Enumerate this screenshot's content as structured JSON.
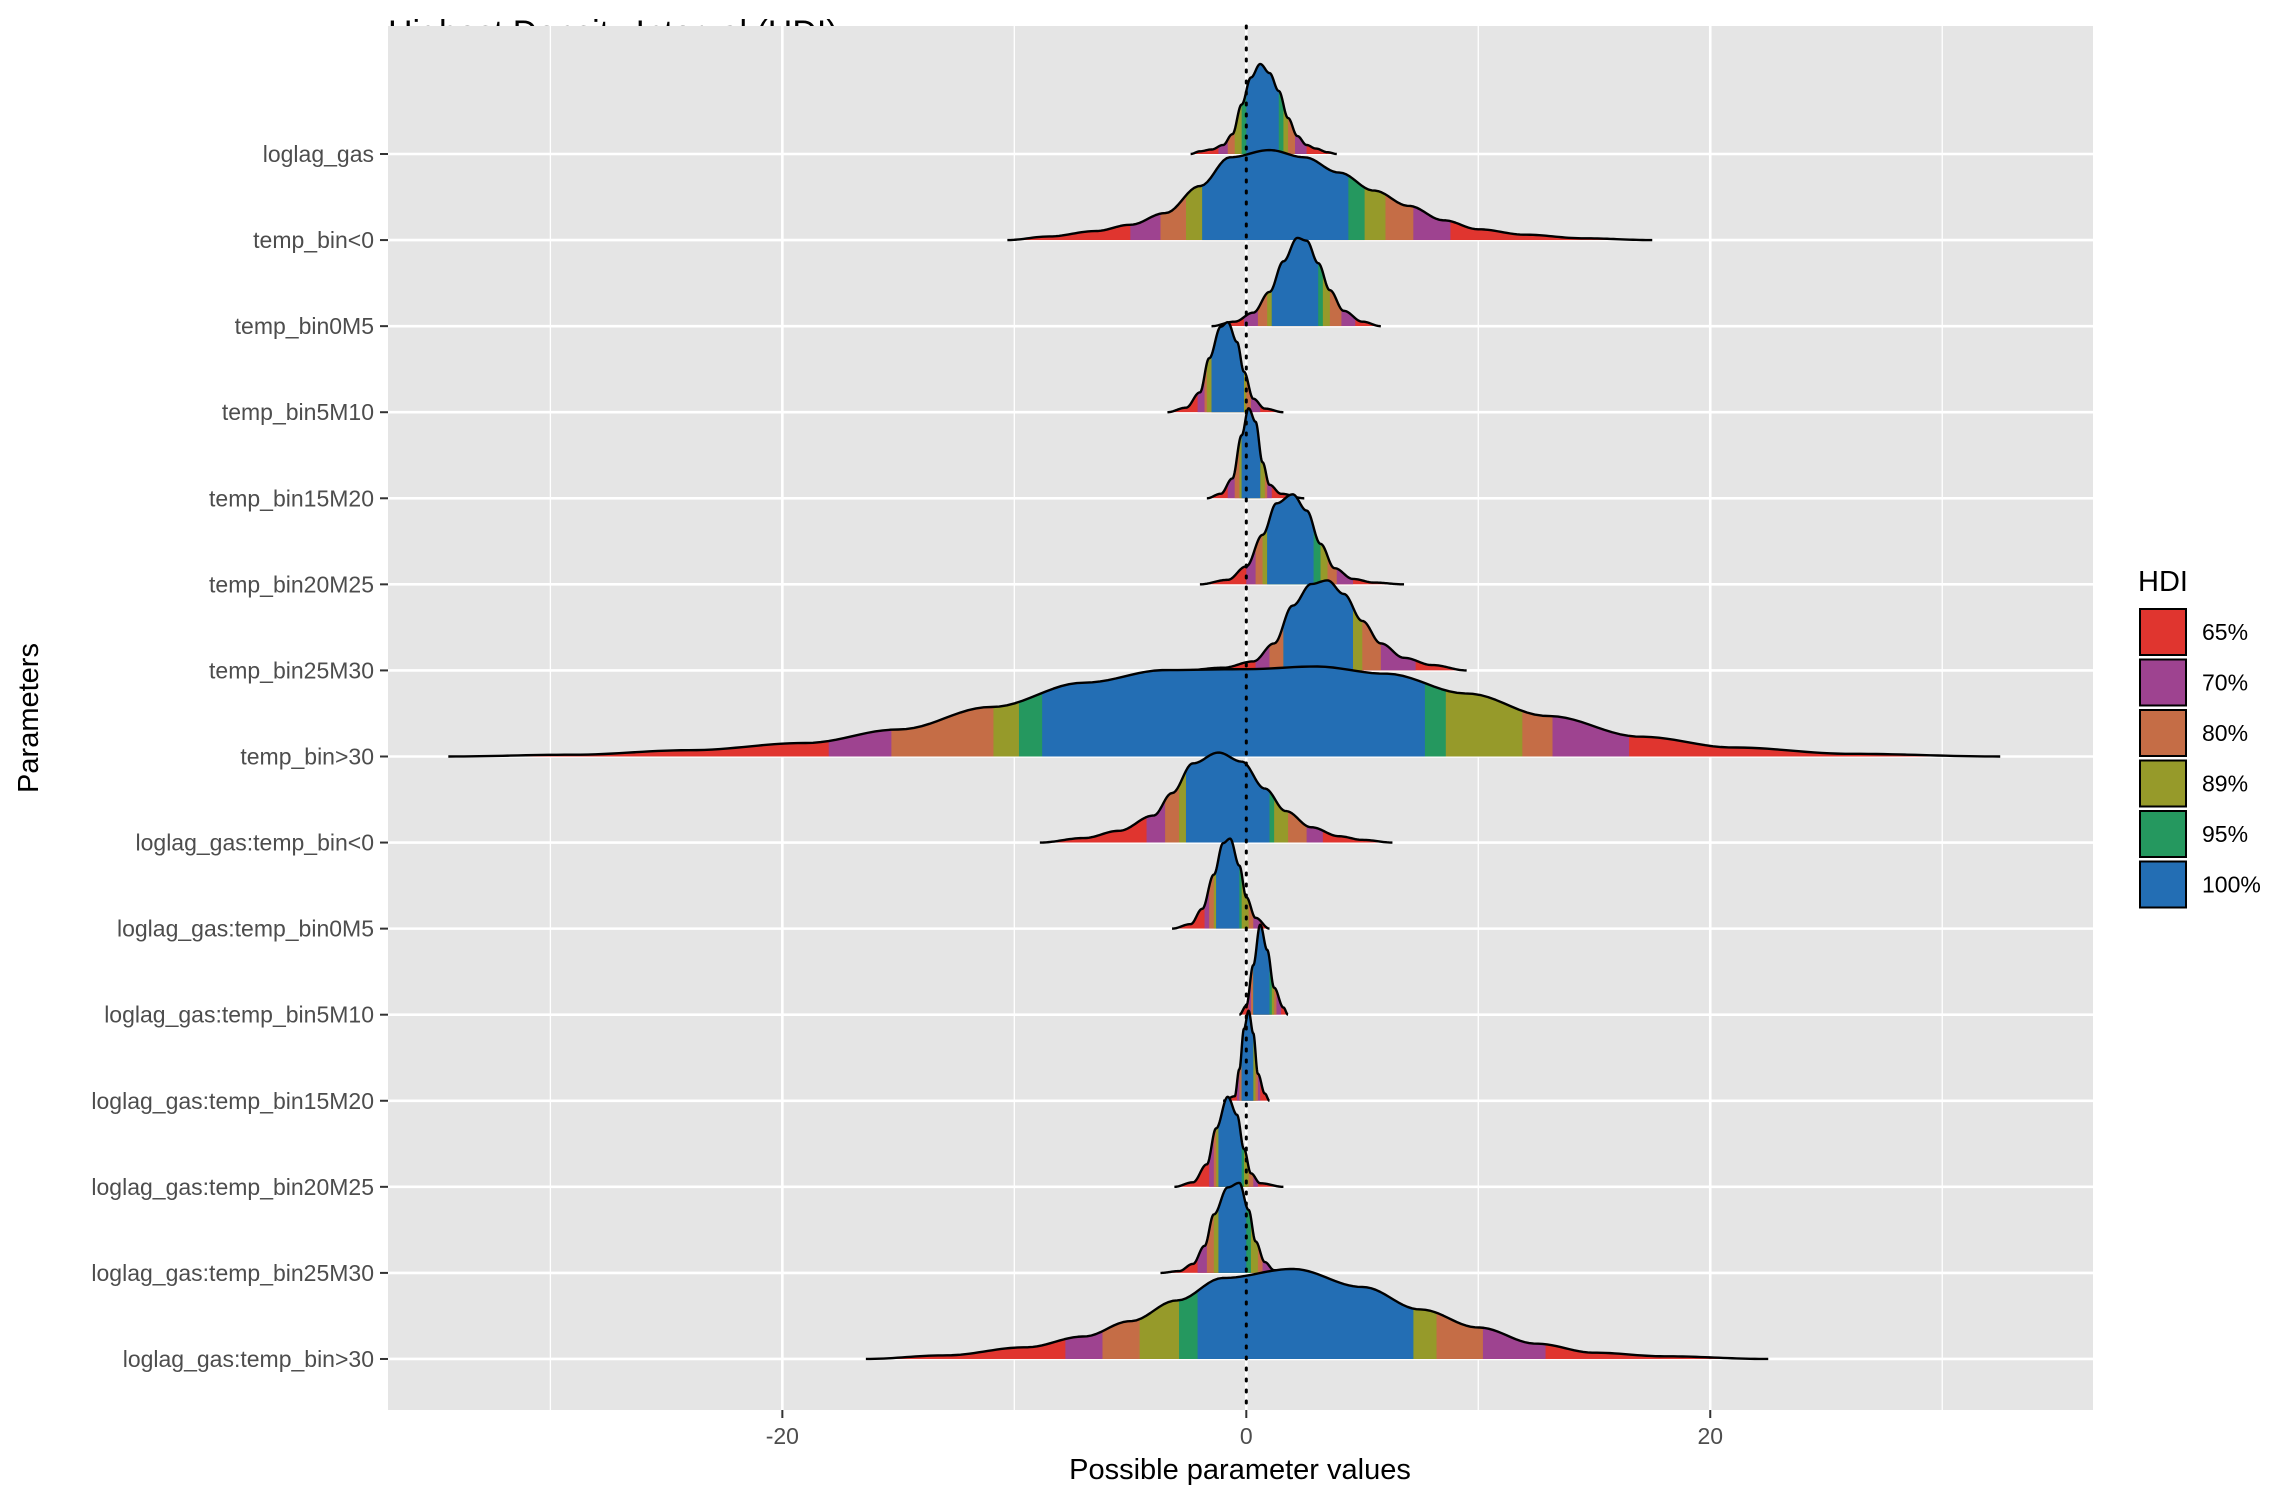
{
  "chart_data": {
    "type": "ridgeline-density",
    "title": "Highest Density Interval (HDI)",
    "xlabel": "Possible parameter values",
    "ylabel": "Parameters",
    "xlim": [
      -37,
      36.5
    ],
    "x_ticks": [
      -20,
      0,
      20
    ],
    "x_tick_labels": [
      "-20",
      "0",
      "20"
    ],
    "reference_line_x": 0,
    "grid": true,
    "legend": {
      "title": "HDI",
      "position": "right",
      "entries": [
        {
          "label": "65%",
          "color": "#E0352F"
        },
        {
          "label": "70%",
          "color": "#9E4390"
        },
        {
          "label": "80%",
          "color": "#C56D46"
        },
        {
          "label": "89%",
          "color": "#969A2A"
        },
        {
          "label": "95%",
          "color": "#25985F"
        },
        {
          "label": "100%",
          "color": "#236EB4"
        }
      ]
    },
    "series": [
      {
        "name": "loglag_gas",
        "peak_height": 1.0,
        "curve": [
          [
            -2.4,
            0.0
          ],
          [
            -2.0,
            0.03
          ],
          [
            -1.5,
            0.05
          ],
          [
            -1.0,
            0.1
          ],
          [
            -0.6,
            0.22
          ],
          [
            -0.2,
            0.55
          ],
          [
            0.2,
            0.85
          ],
          [
            0.6,
            1.0
          ],
          [
            1.0,
            0.9
          ],
          [
            1.4,
            0.7
          ],
          [
            1.8,
            0.4
          ],
          [
            2.2,
            0.2
          ],
          [
            2.6,
            0.1
          ],
          [
            3.0,
            0.06
          ],
          [
            3.5,
            0.02
          ],
          [
            3.9,
            0.0
          ]
        ],
        "intervals": [
          [
            -2.4,
            3.9
          ],
          [
            -1.2,
            2.6
          ],
          [
            -0.8,
            2.1
          ],
          [
            -0.5,
            1.8
          ],
          [
            -0.2,
            1.6
          ],
          [
            0.0,
            1.4
          ]
        ]
      },
      {
        "name": "temp_bin<0",
        "peak_height": 1.0,
        "curve": [
          [
            -10.3,
            0.0
          ],
          [
            -8.5,
            0.04
          ],
          [
            -6.5,
            0.1
          ],
          [
            -5.0,
            0.17
          ],
          [
            -3.5,
            0.3
          ],
          [
            -2.0,
            0.6
          ],
          [
            -0.7,
            0.92
          ],
          [
            1.0,
            1.0
          ],
          [
            2.5,
            0.92
          ],
          [
            4.0,
            0.75
          ],
          [
            5.5,
            0.55
          ],
          [
            7.0,
            0.38
          ],
          [
            8.5,
            0.22
          ],
          [
            10.0,
            0.12
          ],
          [
            12.0,
            0.06
          ],
          [
            14.5,
            0.02
          ],
          [
            17.5,
            0.0
          ]
        ],
        "intervals": [
          [
            -10.3,
            17.5
          ],
          [
            -5.0,
            8.8
          ],
          [
            -3.7,
            7.2
          ],
          [
            -2.6,
            6.0
          ],
          [
            -1.9,
            5.1
          ],
          [
            -1.9,
            4.4
          ]
        ]
      },
      {
        "name": "temp_bin0M5",
        "peak_height": 1.0,
        "curve": [
          [
            -1.5,
            0.0
          ],
          [
            -0.5,
            0.05
          ],
          [
            0.3,
            0.15
          ],
          [
            1.0,
            0.38
          ],
          [
            1.6,
            0.72
          ],
          [
            2.2,
            0.98
          ],
          [
            2.6,
            0.95
          ],
          [
            3.1,
            0.7
          ],
          [
            3.6,
            0.4
          ],
          [
            4.2,
            0.17
          ],
          [
            5.0,
            0.05
          ],
          [
            5.8,
            0.0
          ]
        ],
        "intervals": [
          [
            -1.5,
            5.8
          ],
          [
            -0.1,
            4.7
          ],
          [
            0.5,
            4.1
          ],
          [
            0.9,
            3.6
          ],
          [
            1.1,
            3.3
          ],
          [
            1.1,
            3.1
          ]
        ]
      },
      {
        "name": "temp_bin5M10",
        "peak_height": 1.0,
        "curve": [
          [
            -3.4,
            0.0
          ],
          [
            -2.6,
            0.05
          ],
          [
            -2.0,
            0.22
          ],
          [
            -1.6,
            0.6
          ],
          [
            -1.1,
            0.95
          ],
          [
            -0.8,
            1.0
          ],
          [
            -0.4,
            0.78
          ],
          [
            -0.1,
            0.45
          ],
          [
            0.3,
            0.15
          ],
          [
            0.8,
            0.04
          ],
          [
            1.6,
            0.0
          ]
        ],
        "intervals": [
          [
            -3.4,
            1.6
          ],
          [
            -2.1,
            0.6
          ],
          [
            -1.8,
            0.2
          ],
          [
            -1.7,
            0.0
          ],
          [
            -1.5,
            -0.1
          ],
          [
            -1.5,
            -0.1
          ]
        ]
      },
      {
        "name": "temp_bin15M20",
        "peak_height": 1.0,
        "curve": [
          [
            -1.7,
            0.0
          ],
          [
            -1.1,
            0.05
          ],
          [
            -0.6,
            0.22
          ],
          [
            -0.2,
            0.7
          ],
          [
            0.1,
            1.0
          ],
          [
            0.4,
            0.85
          ],
          [
            0.7,
            0.4
          ],
          [
            1.0,
            0.15
          ],
          [
            1.5,
            0.05
          ],
          [
            2.5,
            0.0
          ]
        ],
        "intervals": [
          [
            -1.7,
            2.5
          ],
          [
            -0.8,
            1.1
          ],
          [
            -0.5,
            0.9
          ],
          [
            -0.3,
            0.8
          ],
          [
            -0.2,
            0.6
          ],
          [
            -0.2,
            0.6
          ]
        ]
      },
      {
        "name": "temp_bin20M25",
        "peak_height": 1.0,
        "curve": [
          [
            -2.0,
            0.0
          ],
          [
            -0.8,
            0.05
          ],
          [
            0.0,
            0.2
          ],
          [
            0.7,
            0.55
          ],
          [
            1.3,
            0.9
          ],
          [
            2.0,
            1.0
          ],
          [
            2.6,
            0.82
          ],
          [
            3.2,
            0.45
          ],
          [
            3.8,
            0.18
          ],
          [
            4.6,
            0.06
          ],
          [
            5.5,
            0.02
          ],
          [
            6.8,
            0.0
          ]
        ],
        "intervals": [
          [
            -2.0,
            6.8
          ],
          [
            0.0,
            4.6
          ],
          [
            0.4,
            3.9
          ],
          [
            0.7,
            3.5
          ],
          [
            0.9,
            3.2
          ],
          [
            0.9,
            2.9
          ]
        ]
      },
      {
        "name": "temp_bin25M30",
        "peak_height": 1.0,
        "curve": [
          [
            -2.7,
            0.0
          ],
          [
            -1.0,
            0.03
          ],
          [
            0.3,
            0.1
          ],
          [
            1.2,
            0.3
          ],
          [
            2.0,
            0.72
          ],
          [
            2.8,
            0.96
          ],
          [
            3.5,
            1.0
          ],
          [
            4.2,
            0.85
          ],
          [
            5.0,
            0.55
          ],
          [
            5.8,
            0.3
          ],
          [
            6.8,
            0.14
          ],
          [
            8.0,
            0.06
          ],
          [
            9.5,
            0.0
          ]
        ],
        "intervals": [
          [
            -2.7,
            9.5
          ],
          [
            0.4,
            7.3
          ],
          [
            1.0,
            5.8
          ],
          [
            1.6,
            5.0
          ],
          [
            1.6,
            4.6
          ],
          [
            1.6,
            4.6
          ]
        ]
      },
      {
        "name": "temp_bin>30",
        "peak_height": 1.0,
        "curve": [
          [
            -34.4,
            0.0
          ],
          [
            -29.0,
            0.02
          ],
          [
            -24.0,
            0.07
          ],
          [
            -19.0,
            0.15
          ],
          [
            -15.0,
            0.3
          ],
          [
            -11.0,
            0.55
          ],
          [
            -7.0,
            0.82
          ],
          [
            -3.5,
            0.96
          ],
          [
            0.0,
            0.97
          ],
          [
            3.0,
            1.0
          ],
          [
            6.0,
            0.92
          ],
          [
            9.5,
            0.7
          ],
          [
            13.0,
            0.45
          ],
          [
            17.0,
            0.22
          ],
          [
            21.0,
            0.1
          ],
          [
            26.0,
            0.03
          ],
          [
            32.5,
            0.0
          ]
        ],
        "intervals": [
          [
            -34.4,
            32.5
          ],
          [
            -18.0,
            16.5
          ],
          [
            -15.3,
            13.2
          ],
          [
            -10.9,
            11.9
          ],
          [
            -9.8,
            8.6
          ],
          [
            -8.8,
            7.7
          ]
        ]
      },
      {
        "name": "loglag_gas:temp_bin<0",
        "peak_height": 1.0,
        "curve": [
          [
            -8.9,
            0.0
          ],
          [
            -7.0,
            0.05
          ],
          [
            -5.5,
            0.13
          ],
          [
            -4.0,
            0.3
          ],
          [
            -3.2,
            0.55
          ],
          [
            -2.3,
            0.88
          ],
          [
            -1.2,
            1.0
          ],
          [
            -0.2,
            0.9
          ],
          [
            0.8,
            0.6
          ],
          [
            1.7,
            0.35
          ],
          [
            2.8,
            0.17
          ],
          [
            4.0,
            0.07
          ],
          [
            5.0,
            0.03
          ],
          [
            6.3,
            0.0
          ]
        ],
        "intervals": [
          [
            -8.9,
            6.3
          ],
          [
            -4.3,
            3.3
          ],
          [
            -3.5,
            2.6
          ],
          [
            -2.9,
            1.8
          ],
          [
            -2.6,
            1.2
          ],
          [
            -2.6,
            1.0
          ]
        ]
      },
      {
        "name": "loglag_gas:temp_bin0M5",
        "peak_height": 1.0,
        "curve": [
          [
            -3.2,
            0.0
          ],
          [
            -2.4,
            0.05
          ],
          [
            -1.9,
            0.22
          ],
          [
            -1.4,
            0.6
          ],
          [
            -1.0,
            0.95
          ],
          [
            -0.7,
            1.0
          ],
          [
            -0.3,
            0.7
          ],
          [
            0.0,
            0.35
          ],
          [
            0.4,
            0.12
          ],
          [
            1.0,
            0.0
          ]
        ],
        "intervals": [
          [
            -3.2,
            1.0
          ],
          [
            -1.8,
            0.6
          ],
          [
            -1.6,
            0.3
          ],
          [
            -1.4,
            0.1
          ],
          [
            -1.3,
            -0.2
          ],
          [
            -1.3,
            -0.3
          ]
        ]
      },
      {
        "name": "loglag_gas:temp_bin5M10",
        "peak_height": 1.0,
        "curve": [
          [
            -0.3,
            0.0
          ],
          [
            0.0,
            0.1
          ],
          [
            0.3,
            0.55
          ],
          [
            0.6,
            1.0
          ],
          [
            0.9,
            0.72
          ],
          [
            1.2,
            0.3
          ],
          [
            1.6,
            0.08
          ],
          [
            1.8,
            0.0
          ]
        ],
        "intervals": [
          [
            -0.3,
            1.8
          ],
          [
            0.1,
            1.5
          ],
          [
            0.2,
            1.3
          ],
          [
            0.3,
            1.2
          ],
          [
            0.3,
            1.1
          ],
          [
            0.3,
            1.0
          ]
        ]
      },
      {
        "name": "loglag_gas:temp_bin15M20",
        "peak_height": 1.0,
        "curve": [
          [
            -1.0,
            0.0
          ],
          [
            -0.5,
            0.05
          ],
          [
            -0.3,
            0.35
          ],
          [
            -0.1,
            0.8
          ],
          [
            0.1,
            1.0
          ],
          [
            0.3,
            0.75
          ],
          [
            0.5,
            0.3
          ],
          [
            0.8,
            0.08
          ],
          [
            1.0,
            0.0
          ]
        ],
        "intervals": [
          [
            -1.0,
            1.0
          ],
          [
            -0.4,
            0.6
          ],
          [
            -0.3,
            0.5
          ],
          [
            -0.2,
            0.4
          ],
          [
            -0.2,
            0.3
          ],
          [
            -0.2,
            0.3
          ]
        ]
      },
      {
        "name": "loglag_gas:temp_bin20M25",
        "peak_height": 1.0,
        "curve": [
          [
            -3.1,
            0.0
          ],
          [
            -2.3,
            0.05
          ],
          [
            -1.7,
            0.25
          ],
          [
            -1.3,
            0.65
          ],
          [
            -0.8,
            1.0
          ],
          [
            -0.4,
            0.8
          ],
          [
            -0.1,
            0.42
          ],
          [
            0.2,
            0.15
          ],
          [
            0.6,
            0.04
          ],
          [
            1.6,
            0.0
          ]
        ],
        "intervals": [
          [
            -3.1,
            1.6
          ],
          [
            -1.6,
            0.5
          ],
          [
            -1.4,
            0.3
          ],
          [
            -1.3,
            0.1
          ],
          [
            -1.2,
            -0.1
          ],
          [
            -1.2,
            -0.2
          ]
        ]
      },
      {
        "name": "loglag_gas:temp_bin25M30",
        "peak_height": 1.0,
        "curve": [
          [
            -3.7,
            0.0
          ],
          [
            -2.9,
            0.02
          ],
          [
            -2.3,
            0.1
          ],
          [
            -1.8,
            0.3
          ],
          [
            -1.4,
            0.65
          ],
          [
            -0.8,
            0.95
          ],
          [
            -0.3,
            1.0
          ],
          [
            0.1,
            0.7
          ],
          [
            0.4,
            0.35
          ],
          [
            0.8,
            0.12
          ],
          [
            1.2,
            0.03
          ],
          [
            2.0,
            0.0
          ]
        ],
        "intervals": [
          [
            -3.7,
            2.0
          ],
          [
            -2.1,
            1.1
          ],
          [
            -1.7,
            0.7
          ],
          [
            -1.4,
            0.5
          ],
          [
            -1.2,
            0.2
          ],
          [
            -1.2,
            0.0
          ]
        ]
      },
      {
        "name": "loglag_gas:temp_bin>30",
        "peak_height": 1.0,
        "curve": [
          [
            -16.4,
            0.0
          ],
          [
            -13.0,
            0.04
          ],
          [
            -9.5,
            0.13
          ],
          [
            -7.0,
            0.25
          ],
          [
            -5.0,
            0.42
          ],
          [
            -3.0,
            0.65
          ],
          [
            -1.0,
            0.9
          ],
          [
            2.0,
            1.0
          ],
          [
            5.0,
            0.8
          ],
          [
            7.5,
            0.55
          ],
          [
            10.0,
            0.35
          ],
          [
            12.5,
            0.17
          ],
          [
            15.0,
            0.07
          ],
          [
            18.0,
            0.03
          ],
          [
            22.5,
            0.0
          ]
        ],
        "intervals": [
          [
            -16.4,
            22.5
          ],
          [
            -7.8,
            12.9
          ],
          [
            -6.2,
            10.2
          ],
          [
            -4.6,
            8.2
          ],
          [
            -2.9,
            7.2
          ],
          [
            -2.1,
            7.2
          ]
        ]
      }
    ]
  }
}
